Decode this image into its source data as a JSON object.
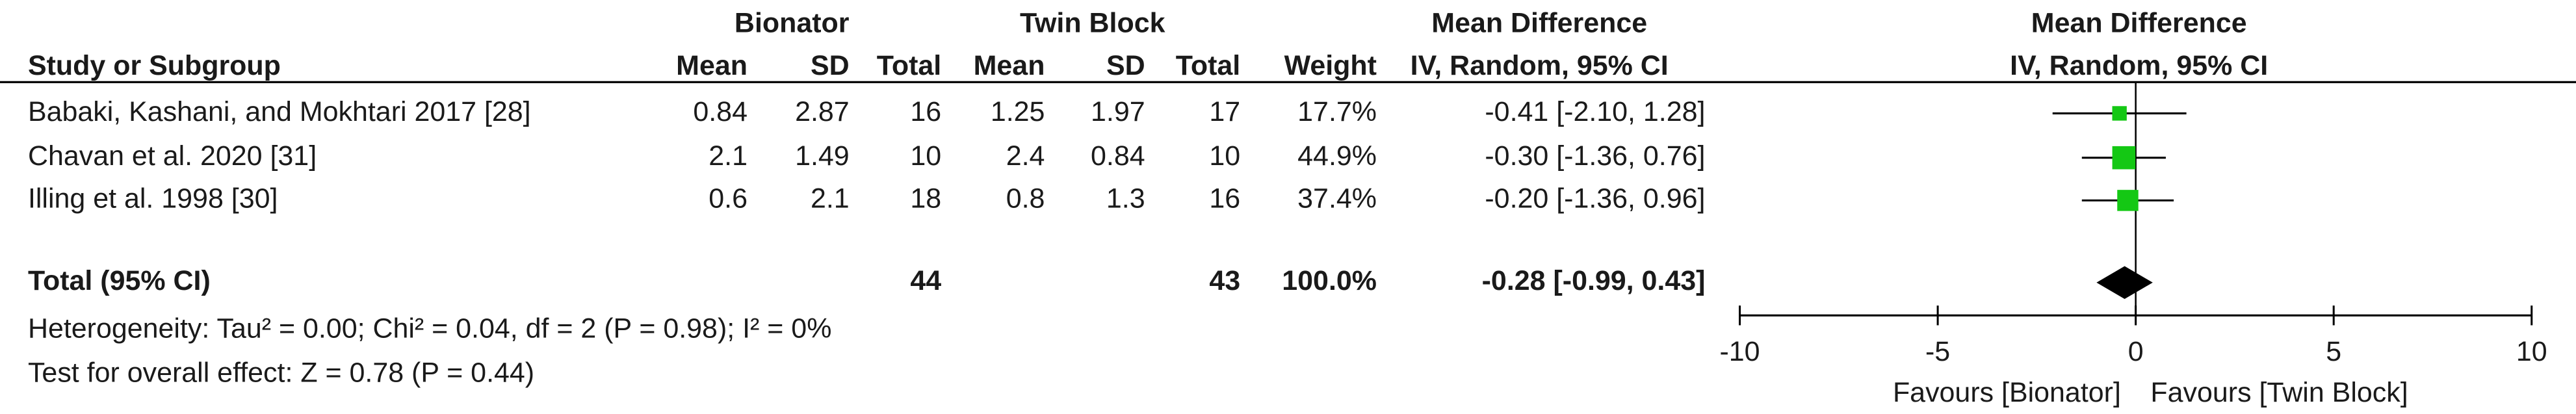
{
  "chart_data": {
    "type": "forest",
    "group_headers": [
      "Bionator",
      "Twin Block",
      "Mean Difference",
      "Mean Difference"
    ],
    "column_headers": [
      "Study or Subgroup",
      "Mean",
      "SD",
      "Total",
      "Mean",
      "SD",
      "Total",
      "Weight",
      "IV, Random, 95% CI",
      "IV, Random, 95% CI"
    ],
    "studies": [
      {
        "name": "Babaki, Kashani, and Mokhtari 2017 [28]",
        "cells": [
          0.84,
          2.87,
          16,
          1.25,
          1.97,
          17
        ],
        "weight": 17.7,
        "weight_label": "17.7%",
        "md": -0.41,
        "lower": -2.1,
        "upper": 1.28,
        "ci_label": "-0.41 [-2.10, 1.28]"
      },
      {
        "name": "Chavan et al. 2020 [31]",
        "cells": [
          2.1,
          1.49,
          10,
          2.4,
          0.84,
          10
        ],
        "weight": 44.9,
        "weight_label": "44.9%",
        "md": -0.3,
        "lower": -1.36,
        "upper": 0.76,
        "ci_label": "-0.30 [-1.36, 0.76]"
      },
      {
        "name": "Illing et al. 1998 [30]",
        "cells": [
          0.6,
          2.1,
          18,
          0.8,
          1.3,
          16
        ],
        "weight": 37.4,
        "weight_label": "37.4%",
        "md": -0.2,
        "lower": -1.36,
        "upper": 0.96,
        "ci_label": "-0.20 [-1.36, 0.96]"
      }
    ],
    "total": {
      "name": "Total (95% CI)",
      "n1": 44,
      "n2": 43,
      "weight": 100,
      "weight_label": "100.0%",
      "md": -0.28,
      "lower": -0.99,
      "upper": 0.43,
      "ci_label": "-0.28 [-0.99, 0.43]"
    },
    "heterogeneity": "Heterogeneity: Tau² = 0.00; Chi² = 0.04, df = 2 (P = 0.98); I² = 0%",
    "overall_effect": "Test for overall effect: Z = 0.78 (P = 0.44)",
    "xlim": [
      -10,
      10
    ],
    "xticks": [
      -10,
      -5,
      0,
      5,
      10
    ],
    "x_labels": [
      "Favours [Bionator]",
      "Favours [Twin Block]"
    ],
    "color": "#14c814"
  }
}
